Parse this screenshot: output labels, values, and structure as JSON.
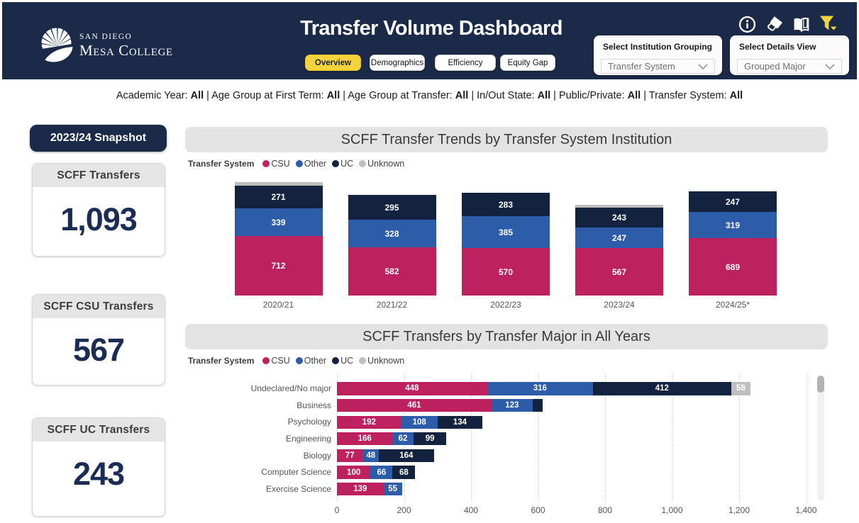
{
  "header": {
    "logo": {
      "line1": "SAN DIEGO",
      "line2": "Mesa College",
      "icon": "shell-logo"
    },
    "title": "Transfer Volume Dashboard",
    "tabs": [
      {
        "label": "Overview",
        "active": true
      },
      {
        "label": "Demographics",
        "active": false
      },
      {
        "label": "Efficiency",
        "active": false
      },
      {
        "label": "Equity Gap",
        "active": false
      }
    ],
    "icons": [
      "info-icon",
      "eraser-icon",
      "book-icon",
      "filter-icon"
    ],
    "slicers": [
      {
        "label": "Select Institution Grouping",
        "value": "Transfer System"
      },
      {
        "label": "Select Details View",
        "value": "Grouped Major"
      }
    ]
  },
  "filter_summary": [
    {
      "label": "Academic Year",
      "value": "All"
    },
    {
      "label": "Age Group at First Term",
      "value": "All"
    },
    {
      "label": "Age Group at Transfer",
      "value": "All"
    },
    {
      "label": "In/Out State",
      "value": "All"
    },
    {
      "label": "Public/Private",
      "value": "All"
    },
    {
      "label": "Transfer System",
      "value": "All"
    }
  ],
  "sidebar": {
    "snapshot_label": "2023/24 Snapshot",
    "cards": [
      {
        "title": "SCFF Transfers",
        "value": "1,093"
      },
      {
        "title": "SCFF CSU Transfers",
        "value": "567"
      },
      {
        "title": "SCFF UC Transfers",
        "value": "243"
      }
    ]
  },
  "colors": {
    "navy_header": "#1b2a49",
    "csu": "#bd215e",
    "other": "#2d5ca9",
    "uc": "#13233f",
    "unknown": "#bfbfbf",
    "yellow": "#f5d33c"
  },
  "chart_data": [
    {
      "type": "bar",
      "orientation": "vertical-stacked",
      "title": "SCFF Transfer Trends by Transfer System Institution",
      "legend_title": "Transfer System",
      "legend": [
        "CSU",
        "Other",
        "UC",
        "Unknown"
      ],
      "categories": [
        "2020/21",
        "2021/22",
        "2022/23",
        "2023/24",
        "2024/25*"
      ],
      "series": [
        {
          "name": "CSU",
          "color": "#bd215e",
          "values": [
            712,
            582,
            570,
            567,
            689
          ]
        },
        {
          "name": "Other",
          "color": "#2d5ca9",
          "values": [
            339,
            328,
            385,
            247,
            319
          ]
        },
        {
          "name": "UC",
          "color": "#13233f",
          "values": [
            271,
            295,
            283,
            243,
            247
          ]
        },
        {
          "name": "Unknown",
          "color": "#bfbfbf",
          "values": [
            40,
            0,
            0,
            36,
            0
          ]
        }
      ],
      "grid": false,
      "value_labels": true
    },
    {
      "type": "bar",
      "orientation": "horizontal-stacked",
      "title": "SCFF Transfers by Transfer Major in All Years",
      "legend_title": "Transfer System",
      "legend": [
        "CSU",
        "Other",
        "UC",
        "Unknown"
      ],
      "categories": [
        "Undeclared/No major",
        "Business",
        "Psychology",
        "Engineering",
        "Biology",
        "Computer Science",
        "Exercise Science"
      ],
      "series": [
        {
          "name": "CSU",
          "color": "#bd215e",
          "values": [
            448,
            461,
            192,
            166,
            77,
            100,
            139
          ]
        },
        {
          "name": "Other",
          "color": "#2d5ca9",
          "values": [
            316,
            123,
            108,
            62,
            48,
            66,
            55
          ]
        },
        {
          "name": "UC",
          "color": "#13233f",
          "values": [
            412,
            31,
            134,
            99,
            164,
            68,
            0
          ]
        },
        {
          "name": "Unknown",
          "color": "#bfbfbf",
          "values": [
            58,
            0,
            0,
            0,
            0,
            0,
            0
          ]
        }
      ],
      "xlim": [
        0,
        1400
      ],
      "x_ticks": [
        0,
        200,
        400,
        600,
        800,
        1000,
        1200,
        1400
      ],
      "x_tick_labels": [
        "0",
        "200",
        "400",
        "600",
        "800",
        "1,000",
        "1,200",
        "1,400"
      ],
      "grid": true,
      "value_labels": true,
      "scrollbar": true
    }
  ]
}
